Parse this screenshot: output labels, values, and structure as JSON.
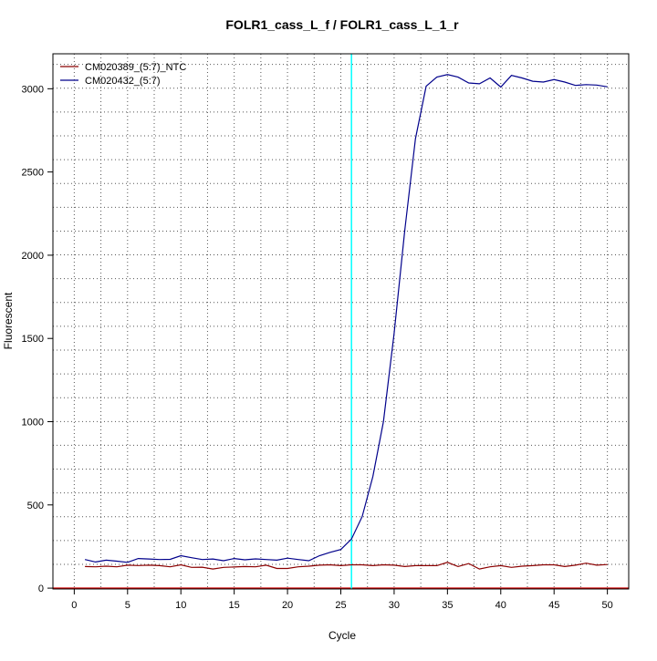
{
  "chart_data": {
    "type": "line",
    "title": "FOLR1_cass_L_f / FOLR1_cass_L_1_r",
    "xlabel": "Cycle",
    "ylabel": "Fluorescent",
    "xlim": [
      -2,
      52
    ],
    "ylim": [
      -5,
      3210
    ],
    "x_ticks": [
      0,
      5,
      10,
      15,
      20,
      25,
      30,
      35,
      40,
      45,
      50
    ],
    "y_ticks": [
      0,
      500,
      1000,
      1500,
      2000,
      2500,
      3000
    ],
    "grid": {
      "style": "dotted",
      "x_every": 2.5,
      "y_every": 143
    },
    "threshold": {
      "x": 26,
      "color": "#00ffff"
    },
    "baseline": {
      "y": 0,
      "color": "#d00000"
    },
    "legend": {
      "position": "top-left"
    },
    "x": [
      1,
      2,
      3,
      4,
      5,
      6,
      7,
      8,
      9,
      10,
      11,
      12,
      13,
      14,
      15,
      16,
      17,
      18,
      19,
      20,
      21,
      22,
      23,
      24,
      25,
      26,
      27,
      28,
      29,
      30,
      31,
      32,
      33,
      34,
      35,
      36,
      37,
      38,
      39,
      40,
      41,
      42,
      43,
      44,
      45,
      46,
      47,
      48,
      49,
      50
    ],
    "series": [
      {
        "name": "CM020389_(5:7)_NTC",
        "color": "#8b0000",
        "values": [
          130,
          128,
          132,
          128,
          138,
          136,
          138,
          135,
          128,
          140,
          125,
          126,
          115,
          125,
          127,
          130,
          128,
          138,
          118,
          118,
          128,
          132,
          138,
          140,
          135,
          140,
          140,
          135,
          140,
          138,
          130,
          135,
          135,
          135,
          155,
          130,
          148,
          115,
          128,
          135,
          125,
          132,
          135,
          140,
          140,
          130,
          138,
          150,
          138,
          142
        ]
      },
      {
        "name": "CM020432_(5:7)",
        "color": "#00008b",
        "values": [
          172,
          157,
          168,
          162,
          155,
          178,
          175,
          172,
          173,
          195,
          183,
          172,
          175,
          165,
          178,
          170,
          176,
          172,
          168,
          180,
          172,
          165,
          195,
          215,
          232,
          295,
          430,
          670,
          1000,
          1530,
          2150,
          2700,
          3015,
          3070,
          3085,
          3070,
          3035,
          3030,
          3065,
          3010,
          3080,
          3065,
          3045,
          3040,
          3055,
          3040,
          3020,
          3025,
          3022,
          3012
        ]
      }
    ]
  }
}
